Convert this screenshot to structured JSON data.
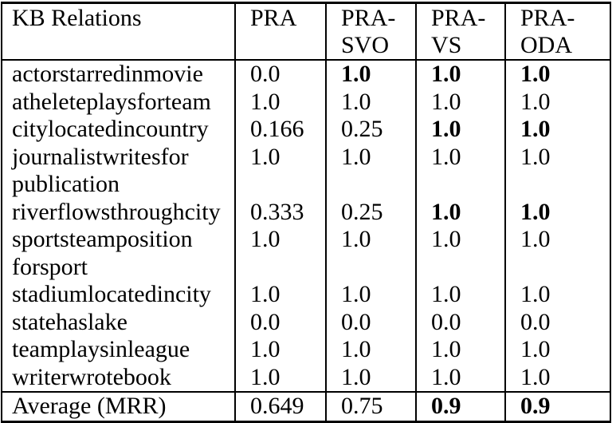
{
  "table": {
    "columns": [
      {
        "label": "KB Relations"
      },
      {
        "label": "PRA"
      },
      {
        "label": "PRA-\nSVO"
      },
      {
        "label": "PRA-\nVS"
      },
      {
        "label": "PRA-\nODA"
      }
    ],
    "rows": [
      {
        "relation": "actorstarredinmovie",
        "values": [
          {
            "text": "0.0",
            "bold": false
          },
          {
            "text": "1.0",
            "bold": true
          },
          {
            "text": "1.0",
            "bold": true
          },
          {
            "text": "1.0",
            "bold": true
          }
        ]
      },
      {
        "relation": "atheleteplaysforteam",
        "values": [
          {
            "text": "1.0",
            "bold": false
          },
          {
            "text": "1.0",
            "bold": false
          },
          {
            "text": "1.0",
            "bold": false
          },
          {
            "text": "1.0",
            "bold": false
          }
        ]
      },
      {
        "relation": "citylocatedincountry",
        "values": [
          {
            "text": "0.166",
            "bold": false
          },
          {
            "text": "0.25",
            "bold": false
          },
          {
            "text": "1.0",
            "bold": true
          },
          {
            "text": "1.0",
            "bold": true
          }
        ]
      },
      {
        "relation": "journalistwritesfor\npublication",
        "values": [
          {
            "text": "1.0",
            "bold": false
          },
          {
            "text": "1.0",
            "bold": false
          },
          {
            "text": "1.0",
            "bold": false
          },
          {
            "text": "1.0",
            "bold": false
          }
        ]
      },
      {
        "relation": "riverflowsthroughcity",
        "values": [
          {
            "text": "0.333",
            "bold": false
          },
          {
            "text": "0.25",
            "bold": false
          },
          {
            "text": "1.0",
            "bold": true
          },
          {
            "text": "1.0",
            "bold": true
          }
        ]
      },
      {
        "relation": "sportsteamposition\nforsport",
        "values": [
          {
            "text": "1.0",
            "bold": false
          },
          {
            "text": "1.0",
            "bold": false
          },
          {
            "text": "1.0",
            "bold": false
          },
          {
            "text": "1.0",
            "bold": false
          }
        ]
      },
      {
        "relation": "stadiumlocatedincity",
        "values": [
          {
            "text": "1.0",
            "bold": false
          },
          {
            "text": "1.0",
            "bold": false
          },
          {
            "text": "1.0",
            "bold": false
          },
          {
            "text": "1.0",
            "bold": false
          }
        ]
      },
      {
        "relation": "statehaslake",
        "values": [
          {
            "text": "0.0",
            "bold": false
          },
          {
            "text": "0.0",
            "bold": false
          },
          {
            "text": "0.0",
            "bold": false
          },
          {
            "text": "0.0",
            "bold": false
          }
        ]
      },
      {
        "relation": "teamplaysinleague",
        "values": [
          {
            "text": "1.0",
            "bold": false
          },
          {
            "text": "1.0",
            "bold": false
          },
          {
            "text": "1.0",
            "bold": false
          },
          {
            "text": "1.0",
            "bold": false
          }
        ]
      },
      {
        "relation": "writerwrotebook",
        "values": [
          {
            "text": "1.0",
            "bold": false
          },
          {
            "text": "1.0",
            "bold": false
          },
          {
            "text": "1.0",
            "bold": false
          },
          {
            "text": "1.0",
            "bold": false
          }
        ]
      }
    ],
    "footer": {
      "label": "Average (MRR)",
      "values": [
        {
          "text": "0.649",
          "bold": false
        },
        {
          "text": "0.75",
          "bold": false
        },
        {
          "text": "0.9",
          "bold": true
        },
        {
          "text": "0.9",
          "bold": true
        }
      ]
    }
  },
  "colors": {
    "text": "#000000",
    "background": "#ffffff",
    "border": "#000000"
  }
}
